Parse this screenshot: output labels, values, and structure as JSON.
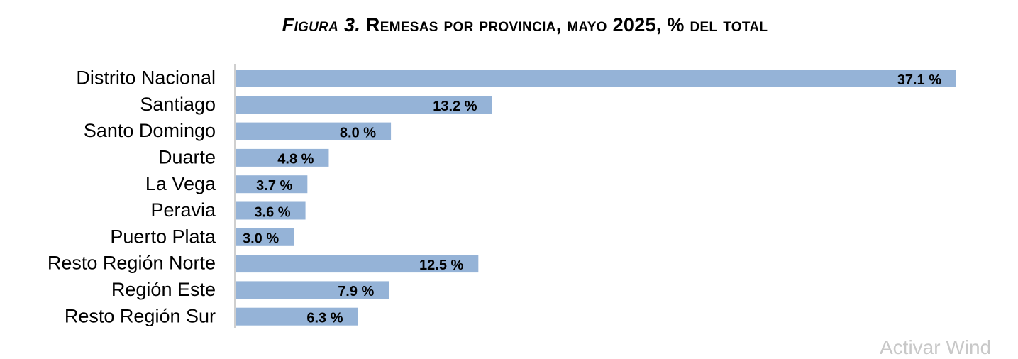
{
  "title": {
    "prefix": "Figura 3.",
    "text": "Remesas por provincia, mayo 2025, % del total"
  },
  "watermark": "Activar Wind",
  "chart_data": {
    "type": "bar",
    "orientation": "horizontal",
    "title": "Figura 3. Remesas por provincia, mayo 2025, % del total",
    "categories": [
      "Distrito Nacional",
      "Santiago",
      "Santo Domingo",
      "Duarte",
      "La Vega",
      "Peravia",
      "Puerto Plata",
      "Resto Región Norte",
      "Región Este",
      "Resto Región Sur"
    ],
    "values": [
      37.1,
      13.2,
      8.0,
      4.8,
      3.7,
      3.6,
      3.0,
      12.5,
      7.9,
      6.3
    ],
    "data_labels": [
      "37.1 %",
      "13.2 %",
      "8.0 %",
      "4.8 %",
      "3.7 %",
      "3.6 %",
      "3.0 %",
      "12.5 %",
      "7.9 %",
      "6.3 %"
    ],
    "xlim": [
      0,
      37.1
    ],
    "bar_color": "#95b3d7",
    "axis_color": "#bfbfbf",
    "grid": false,
    "legend": "none"
  }
}
